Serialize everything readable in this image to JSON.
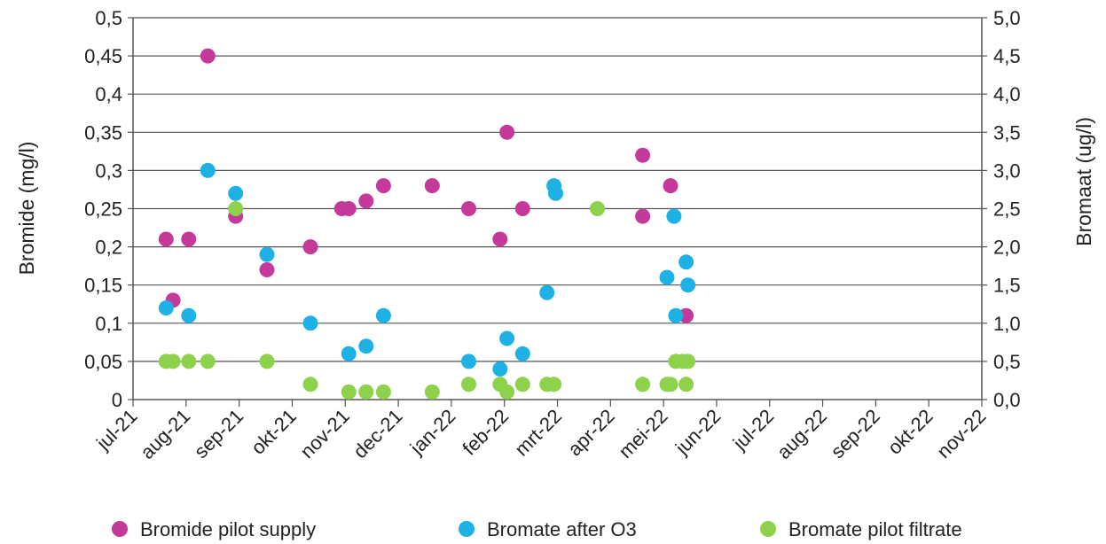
{
  "chart_data": {
    "type": "scatter",
    "xlabel": "",
    "ylabel": "Bromide (mg/l)",
    "y2label": "Bromaat (ug/l)",
    "x_ticks": [
      "jul-21",
      "aug-21",
      "sep-21",
      "okt-21",
      "nov-21",
      "dec-21",
      "jan-22",
      "feb-22",
      "mrt-22",
      "apr-22",
      "mei-22",
      "jun-22",
      "jul-22",
      "aug-22",
      "sep-22",
      "okt-22",
      "nov-22"
    ],
    "xlim": [
      "2021-07-01",
      "2022-11-01"
    ],
    "ylim": [
      0,
      0.5
    ],
    "y2lim": [
      0,
      5.0
    ],
    "y_ticks": [
      "0",
      "0,05",
      "0,1",
      "0,15",
      "0,2",
      "0,25",
      "0,3",
      "0,35",
      "0,4",
      "0,45",
      "0,5"
    ],
    "y2_ticks": [
      "0,0",
      "0,5",
      "1,0",
      "1,5",
      "2,0",
      "2,5",
      "3,0",
      "3,5",
      "4,0",
      "4,5",
      "5,0"
    ],
    "grid": "horizontal",
    "legend_position": "bottom",
    "series": [
      {
        "name": "Bromide pilot supply",
        "axis": "left",
        "color": "#c5399b",
        "points": [
          {
            "x": "2021-07-20",
            "y": 0.21
          },
          {
            "x": "2021-07-24",
            "y": 0.13
          },
          {
            "x": "2021-08-02",
            "y": 0.21
          },
          {
            "x": "2021-08-13",
            "y": 0.45
          },
          {
            "x": "2021-08-29",
            "y": 0.24
          },
          {
            "x": "2021-09-16",
            "y": 0.17
          },
          {
            "x": "2021-10-11",
            "y": 0.2
          },
          {
            "x": "2021-10-29",
            "y": 0.25
          },
          {
            "x": "2021-11-02",
            "y": 0.25
          },
          {
            "x": "2021-11-12",
            "y": 0.26
          },
          {
            "x": "2021-11-22",
            "y": 0.28
          },
          {
            "x": "2021-12-20",
            "y": 0.28
          },
          {
            "x": "2022-01-10",
            "y": 0.25
          },
          {
            "x": "2022-01-28",
            "y": 0.21
          },
          {
            "x": "2022-02-01",
            "y": 0.35
          },
          {
            "x": "2022-02-10",
            "y": 0.25
          },
          {
            "x": "2022-04-20",
            "y": 0.32
          },
          {
            "x": "2022-05-06",
            "y": 0.28
          },
          {
            "x": "2022-05-15",
            "y": 0.11
          },
          {
            "x": "2022-04-20",
            "y": 0.24
          }
        ]
      },
      {
        "name": "Bromate after O3",
        "axis": "right",
        "color": "#1eb1e6",
        "points": [
          {
            "x": "2021-07-20",
            "y": 1.2
          },
          {
            "x": "2021-08-02",
            "y": 1.1
          },
          {
            "x": "2021-08-13",
            "y": 3.0
          },
          {
            "x": "2021-08-29",
            "y": 2.7
          },
          {
            "x": "2021-09-16",
            "y": 1.9
          },
          {
            "x": "2021-10-11",
            "y": 1.0
          },
          {
            "x": "2021-11-02",
            "y": 0.6
          },
          {
            "x": "2021-11-12",
            "y": 0.7
          },
          {
            "x": "2021-11-22",
            "y": 1.1
          },
          {
            "x": "2022-01-10",
            "y": 0.5
          },
          {
            "x": "2022-01-28",
            "y": 0.4
          },
          {
            "x": "2022-02-01",
            "y": 0.8
          },
          {
            "x": "2022-02-10",
            "y": 0.6
          },
          {
            "x": "2022-02-24",
            "y": 1.4
          },
          {
            "x": "2022-02-28",
            "y": 2.8
          },
          {
            "x": "2022-03-01",
            "y": 2.7
          },
          {
            "x": "2022-05-04",
            "y": 1.6
          },
          {
            "x": "2022-05-08",
            "y": 2.4
          },
          {
            "x": "2022-05-09",
            "y": 1.1
          },
          {
            "x": "2022-05-15",
            "y": 1.8
          },
          {
            "x": "2022-05-16",
            "y": 1.5
          }
        ]
      },
      {
        "name": "Bromate pilot filtrate",
        "axis": "right",
        "color": "#8ed14b",
        "points": [
          {
            "x": "2021-07-20",
            "y": 0.5
          },
          {
            "x": "2021-07-24",
            "y": 0.5
          },
          {
            "x": "2021-08-02",
            "y": 0.5
          },
          {
            "x": "2021-08-13",
            "y": 0.5
          },
          {
            "x": "2021-08-29",
            "y": 2.5
          },
          {
            "x": "2021-09-16",
            "y": 0.5
          },
          {
            "x": "2021-10-11",
            "y": 0.2
          },
          {
            "x": "2021-11-02",
            "y": 0.1
          },
          {
            "x": "2021-11-12",
            "y": 0.1
          },
          {
            "x": "2021-11-22",
            "y": 0.1
          },
          {
            "x": "2021-12-20",
            "y": 0.1
          },
          {
            "x": "2022-01-10",
            "y": 0.2
          },
          {
            "x": "2022-01-28",
            "y": 0.2
          },
          {
            "x": "2022-02-01",
            "y": 0.1
          },
          {
            "x": "2022-02-10",
            "y": 0.2
          },
          {
            "x": "2022-02-24",
            "y": 0.2
          },
          {
            "x": "2022-02-28",
            "y": 0.2
          },
          {
            "x": "2022-03-25",
            "y": 2.5
          },
          {
            "x": "2022-04-20",
            "y": 0.2
          },
          {
            "x": "2022-05-04",
            "y": 0.2
          },
          {
            "x": "2022-05-06",
            "y": 0.2
          },
          {
            "x": "2022-05-09",
            "y": 0.5
          },
          {
            "x": "2022-05-13",
            "y": 0.5
          },
          {
            "x": "2022-05-15",
            "y": 0.2
          },
          {
            "x": "2022-05-16",
            "y": 0.5
          }
        ]
      }
    ]
  }
}
